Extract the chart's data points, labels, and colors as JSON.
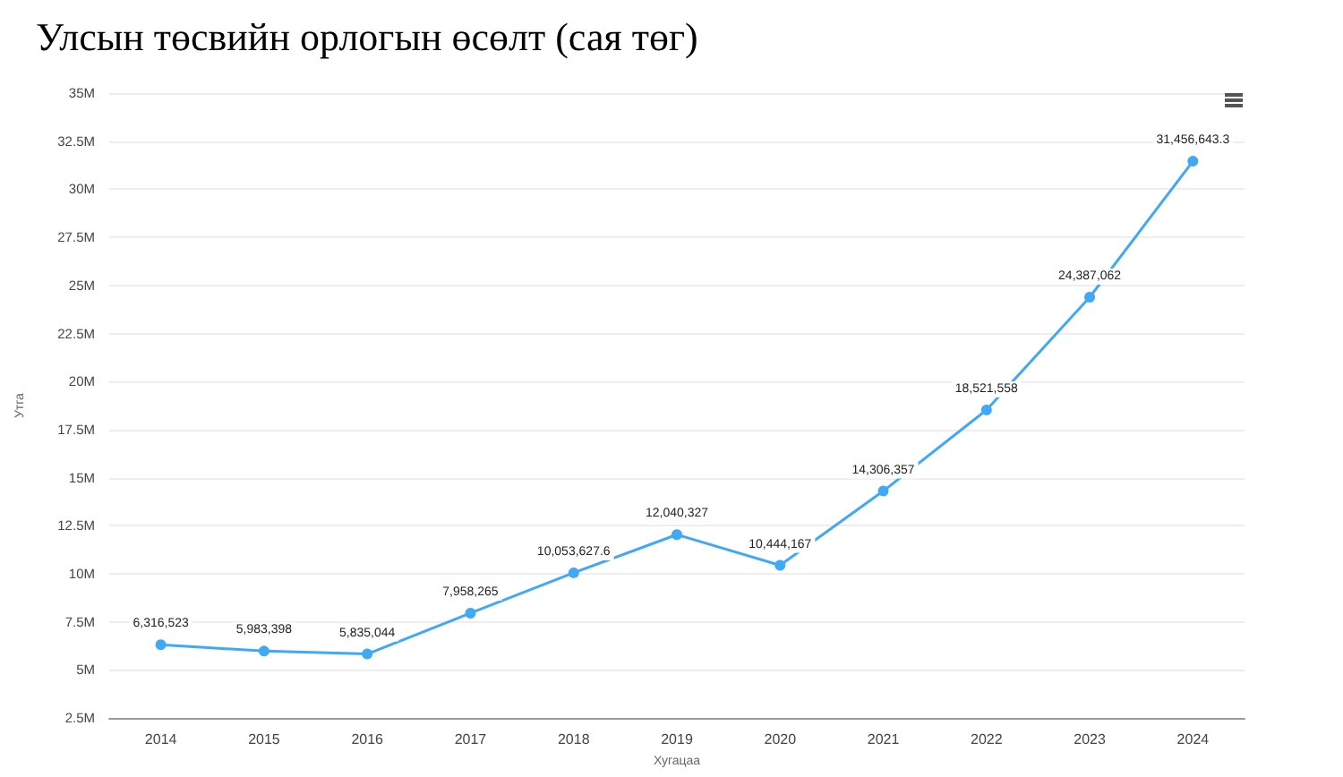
{
  "chart_data": {
    "type": "line",
    "title": "Улсын төсвийн орлогын өсөлт (сая төг)",
    "xlabel": "Хугацаа",
    "ylabel": "Утга",
    "categories": [
      "2014",
      "2015",
      "2016",
      "2017",
      "2018",
      "2019",
      "2020",
      "2021",
      "2022",
      "2023",
      "2024"
    ],
    "series": [
      {
        "color": "#3fa9f5",
        "values": [
          6316523,
          5983398,
          5835044,
          7958265,
          10053627.6,
          12040327,
          10444167,
          14306357,
          18521558,
          24387062,
          31456643.3
        ],
        "value_labels": [
          "6,316,523",
          "5,983,398",
          "5,835,044",
          "7,958,265",
          "10,053,627.6",
          "12,040,327",
          "10,444,167",
          "14,306,357",
          "18,521,558",
          "24,387,062",
          "31,456,643.3"
        ]
      }
    ],
    "ylim": [
      2500000,
      35000000
    ],
    "yticks": [
      {
        "value": 2500000,
        "label": "2.5M"
      },
      {
        "value": 5000000,
        "label": "5M"
      },
      {
        "value": 7500000,
        "label": "7.5M"
      },
      {
        "value": 10000000,
        "label": "10M"
      },
      {
        "value": 12500000,
        "label": "12.5M"
      },
      {
        "value": 15000000,
        "label": "15M"
      },
      {
        "value": 17500000,
        "label": "17.5M"
      },
      {
        "value": 20000000,
        "label": "20M"
      },
      {
        "value": 22500000,
        "label": "22.5M"
      },
      {
        "value": 25000000,
        "label": "25M"
      },
      {
        "value": 27500000,
        "label": "27.5M"
      },
      {
        "value": 30000000,
        "label": "30M"
      },
      {
        "value": 32500000,
        "label": "32.5M"
      },
      {
        "value": 35000000,
        "label": "35M"
      }
    ],
    "grid": "y",
    "marker": "circle",
    "line_style": "solid"
  }
}
